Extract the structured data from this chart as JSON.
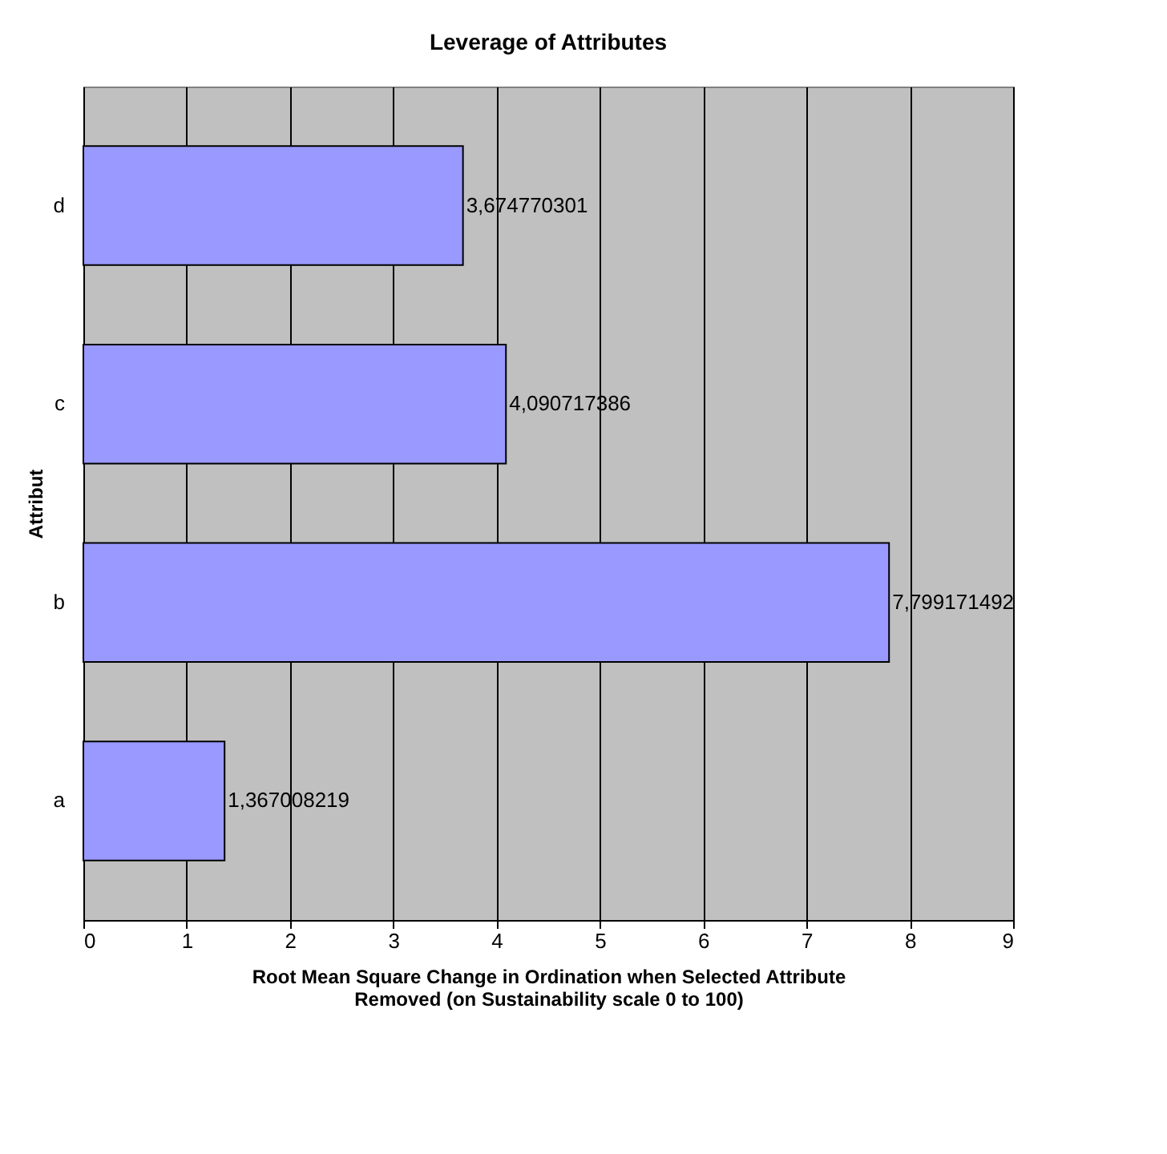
{
  "chart_data": {
    "type": "bar",
    "orientation": "horizontal",
    "title": "Leverage of Attributes",
    "xlabel": "Root Mean Square Change in Ordination when Selected Attribute Removed (on Sustainability scale 0 to 100)",
    "ylabel": "Attribut",
    "categories": [
      "d",
      "c",
      "b",
      "a"
    ],
    "series": [
      {
        "color": "#9999ff",
        "values": [
          3.674770301,
          4.090717386,
          7.799171492,
          1.367008219
        ]
      }
    ],
    "value_labels": [
      "3,674770301",
      "4,090717386",
      "7,799171492",
      "1,367008219"
    ],
    "xlim": [
      0,
      9
    ],
    "xticks": [
      0,
      1,
      2,
      3,
      4,
      5,
      6,
      7,
      8,
      9
    ],
    "grid": "x"
  }
}
